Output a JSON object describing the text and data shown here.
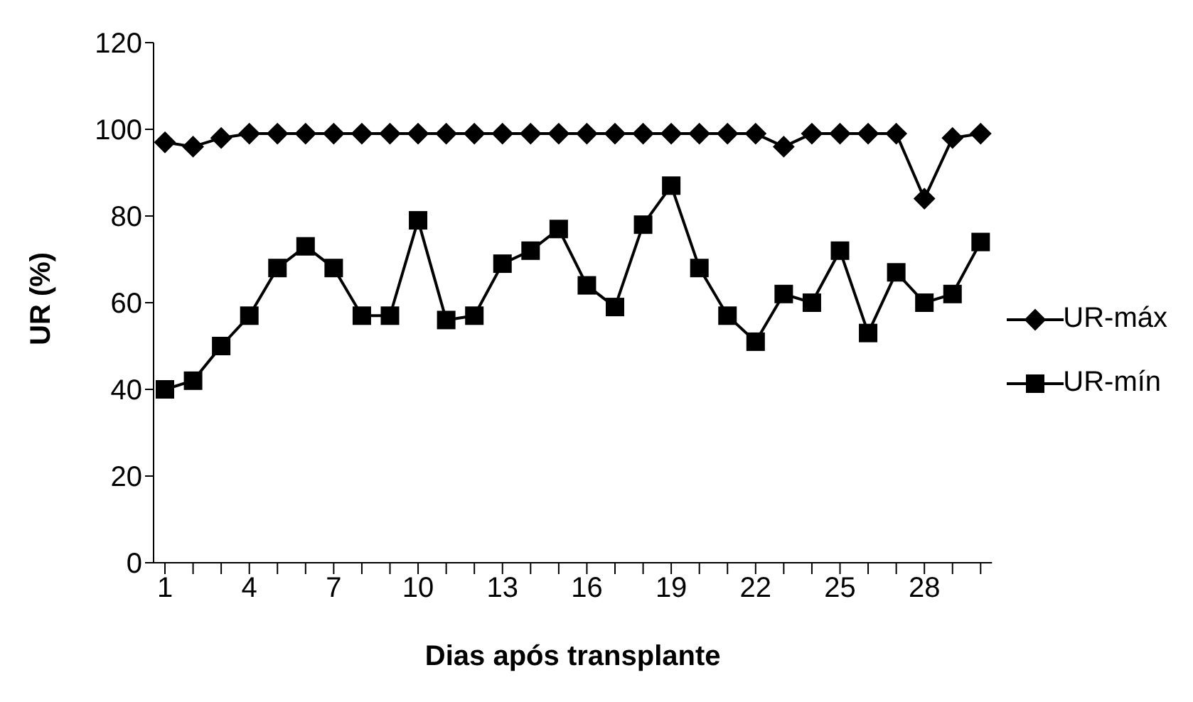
{
  "chart_data": {
    "type": "line",
    "xlabel": "Dias após transplante",
    "ylabel": "UR (%)",
    "categories": [
      "1",
      null,
      null,
      "4",
      null,
      null,
      "7",
      null,
      null,
      "10",
      null,
      null,
      "13",
      null,
      null,
      "16",
      null,
      null,
      "19",
      null,
      null,
      "22",
      null,
      null,
      "25",
      null,
      null,
      "28",
      null,
      null
    ],
    "series": [
      {
        "name": "UR-máx",
        "color": "#000000",
        "marker": "diamond",
        "values": [
          97,
          96,
          98,
          99,
          99,
          99,
          99,
          99,
          99,
          99,
          99,
          99,
          99,
          99,
          99,
          99,
          99,
          99,
          99,
          99,
          99,
          99,
          96,
          99,
          99,
          99,
          99,
          84,
          98,
          99
        ]
      },
      {
        "name": "UR-mín",
        "color": "#000000",
        "marker": "square",
        "values": [
          40,
          42,
          50,
          57,
          68,
          73,
          68,
          57,
          57,
          79,
          56,
          57,
          69,
          72,
          77,
          64,
          59,
          78,
          87,
          68,
          57,
          51,
          62,
          60,
          72,
          53,
          67,
          60,
          62,
          74
        ]
      }
    ],
    "ylim": [
      0,
      120
    ],
    "yticks": [
      0,
      20,
      40,
      60,
      80,
      100,
      120
    ],
    "grid": false,
    "legend": "right",
    "line_style": "solid"
  }
}
